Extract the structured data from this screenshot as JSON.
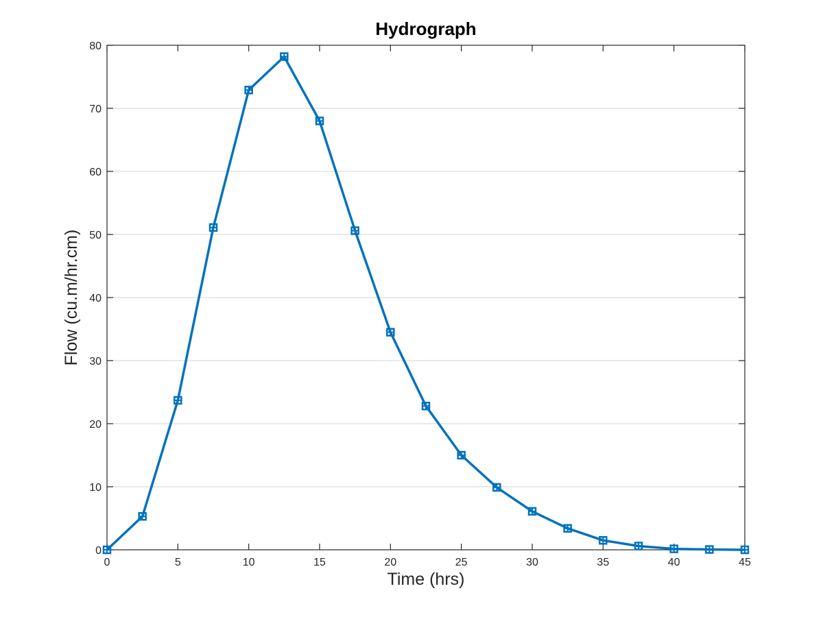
{
  "chart_data": {
    "type": "line",
    "title": "Hydrograph",
    "xlabel": "Time (hrs)",
    "ylabel": "Flow (cu.m/hr.cm)",
    "xlim": [
      0,
      45
    ],
    "ylim": [
      0,
      80
    ],
    "xticks": [
      0,
      5,
      10,
      15,
      20,
      25,
      30,
      35,
      40,
      45
    ],
    "yticks": [
      0,
      10,
      20,
      30,
      40,
      50,
      60,
      70,
      80
    ],
    "grid": "horizontal",
    "marker": "square",
    "line_color": "#0072BD",
    "series": [
      {
        "x": [
          0,
          2.5,
          5,
          7.5,
          10,
          12.5,
          15,
          17.5,
          20,
          22.5,
          25,
          27.5,
          30,
          32.5,
          35,
          37.5,
          40,
          42.5,
          45
        ],
        "values": [
          0,
          5.3,
          23.7,
          51.1,
          72.9,
          78.2,
          68.0,
          50.6,
          34.5,
          22.8,
          15.0,
          9.9,
          6.1,
          3.4,
          1.5,
          0.6,
          0.15,
          0.05,
          0
        ]
      }
    ]
  }
}
